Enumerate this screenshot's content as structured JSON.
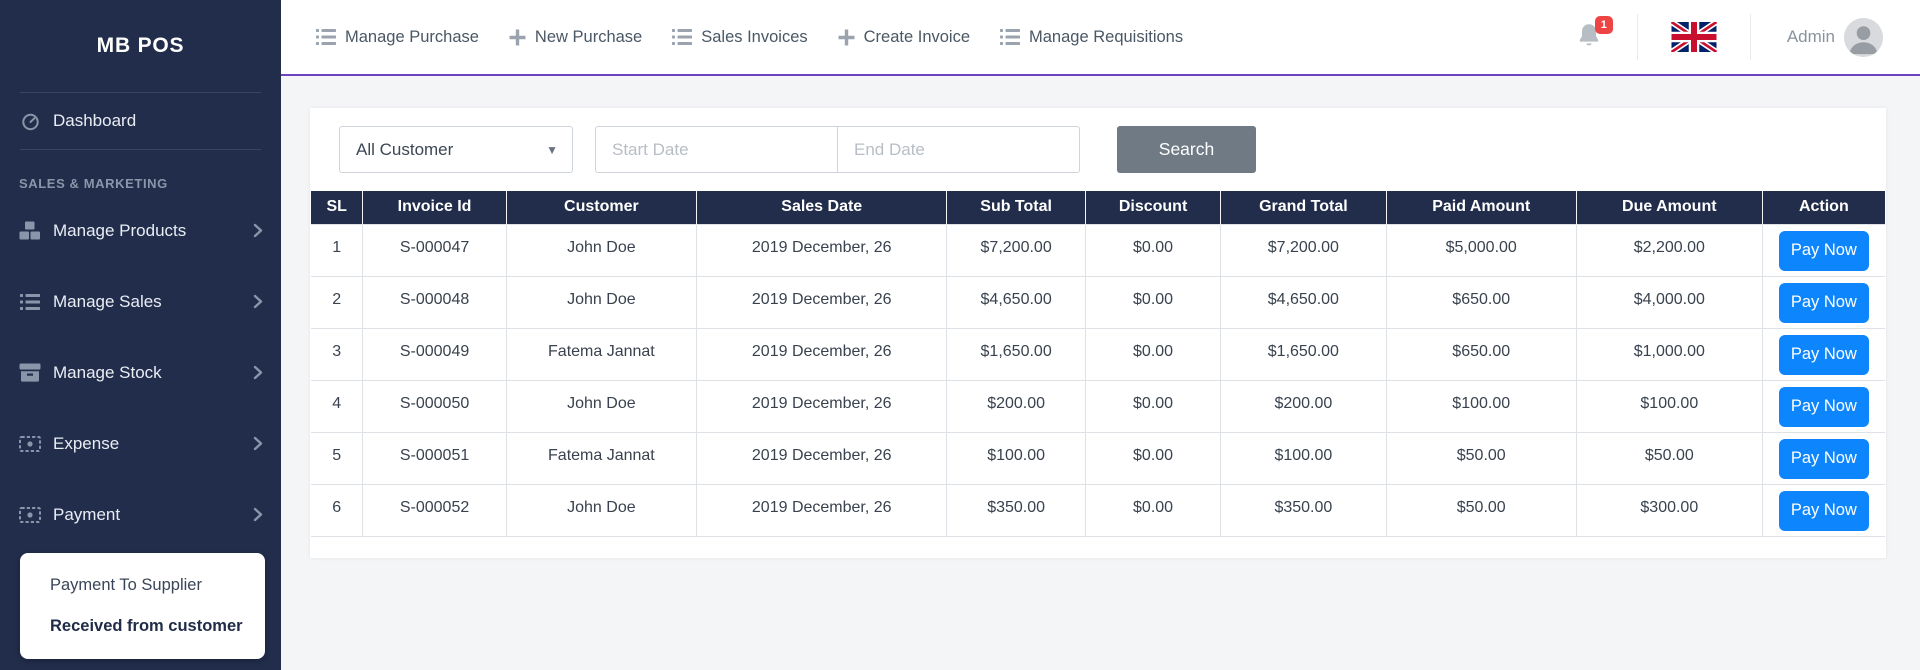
{
  "brand": "MB POS",
  "sidebar": {
    "dashboard": {
      "label": "Dashboard",
      "icon": "dashboard-icon"
    },
    "section": "SALES & MARKETING",
    "items": [
      {
        "label": "Manage Products",
        "icon": "cubes-icon"
      },
      {
        "label": "Manage Sales",
        "icon": "list-icon"
      },
      {
        "label": "Manage Stock",
        "icon": "box-icon"
      },
      {
        "label": "Expense",
        "icon": "money-icon"
      },
      {
        "label": "Payment",
        "icon": "money-icon"
      }
    ],
    "submenu": [
      {
        "label": "Payment To Supplier",
        "active": false
      },
      {
        "label": "Received from customer",
        "active": true
      }
    ]
  },
  "topnav": {
    "items": [
      {
        "label": "Manage Purchase",
        "icon": "list-icon"
      },
      {
        "label": "New Purchase",
        "icon": "plus-icon"
      },
      {
        "label": "Sales Invoices",
        "icon": "list-icon"
      },
      {
        "label": "Create Invoice",
        "icon": "plus-icon"
      },
      {
        "label": "Manage Requisitions",
        "icon": "list-icon"
      }
    ],
    "notification_count": "1",
    "user": "Admin"
  },
  "filters": {
    "customer": "All Customer",
    "start_placeholder": "Start Date",
    "end_placeholder": "End Date",
    "search": "Search"
  },
  "table": {
    "columns": [
      "SL",
      "Invoice Id",
      "Customer",
      "Sales Date",
      "Sub Total",
      "Discount",
      "Grand Total",
      "Paid Amount",
      "Due Amount",
      "Action"
    ],
    "pay_button": "Pay Now",
    "rows": [
      [
        "1",
        "S-000047",
        "John Doe",
        "2019 December, 26",
        "$7,200.00",
        "$0.00",
        "$7,200.00",
        "$5,000.00",
        "$2,200.00"
      ],
      [
        "2",
        "S-000048",
        "John Doe",
        "2019 December, 26",
        "$4,650.00",
        "$0.00",
        "$4,650.00",
        "$650.00",
        "$4,000.00"
      ],
      [
        "3",
        "S-000049",
        "Fatema Jannat",
        "2019 December, 26",
        "$1,650.00",
        "$0.00",
        "$1,650.00",
        "$650.00",
        "$1,000.00"
      ],
      [
        "4",
        "S-000050",
        "John Doe",
        "2019 December, 26",
        "$200.00",
        "$0.00",
        "$200.00",
        "$100.00",
        "$100.00"
      ],
      [
        "5",
        "S-000051",
        "Fatema Jannat",
        "2019 December, 26",
        "$100.00",
        "$0.00",
        "$100.00",
        "$50.00",
        "$50.00"
      ],
      [
        "6",
        "S-000052",
        "John Doe",
        "2019 December, 26",
        "$350.00",
        "$0.00",
        "$350.00",
        "$50.00",
        "$300.00"
      ]
    ]
  },
  "colors": {
    "sidebar_bg": "#212d4b",
    "accent_purple": "#6f42c1",
    "primary_blue": "#0d86fd",
    "search_gray": "#6f7a84",
    "badge_red": "#ef4444"
  }
}
